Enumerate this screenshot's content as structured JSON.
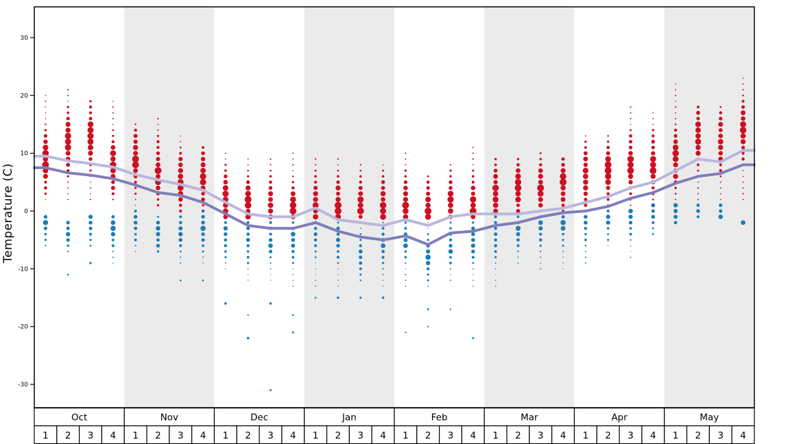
{
  "chart_data": {
    "type": "scatter",
    "title": "",
    "ylabel": "Temperature (C)",
    "ylim": [
      -34,
      35
    ],
    "yticks": [
      -30,
      -20,
      -10,
      0,
      10,
      20,
      30
    ],
    "grid": false,
    "legend": "none",
    "months": [
      {
        "label": "Oct",
        "shaded": false
      },
      {
        "label": "Nov",
        "shaded": true
      },
      {
        "label": "Dec",
        "shaded": false
      },
      {
        "label": "Jan",
        "shaded": true
      },
      {
        "label": "Feb",
        "shaded": false
      },
      {
        "label": "Mar",
        "shaded": true
      },
      {
        "label": "Apr",
        "shaded": false
      },
      {
        "label": "May",
        "shaded": true
      }
    ],
    "week_labels": [
      "1",
      "2",
      "3",
      "4"
    ],
    "colors": {
      "band": "#ebebeb",
      "max_dots": "#cc1122",
      "min_dots": "#1a7db6",
      "avg_max_line": "#b9b7dd",
      "avg_min_line": "#807db9"
    },
    "series": [
      {
        "name": "average_max_temp",
        "values": [
          9.5,
          8.7,
          8.2,
          7.6,
          6.3,
          5.4,
          4.6,
          3.6,
          1.5,
          -0.5,
          -1.0,
          -1.0,
          0.5,
          -1.5,
          -2.0,
          -2.5,
          -1.5,
          -2.5,
          -1.0,
          -0.5,
          -0.5,
          -0.5,
          0.0,
          0.5,
          1.5,
          2.5,
          4.0,
          5.0,
          7.0,
          9.0,
          8.5,
          10.5
        ]
      },
      {
        "name": "average_min_temp",
        "values": [
          7.5,
          6.6,
          6.2,
          5.6,
          4.5,
          3.2,
          2.7,
          1.5,
          -0.5,
          -2.5,
          -3.0,
          -3.0,
          -2.0,
          -3.5,
          -4.5,
          -5.0,
          -4.3,
          -5.8,
          -3.8,
          -3.5,
          -2.5,
          -2.0,
          -1.0,
          -0.3,
          0.0,
          0.8,
          2.2,
          3.2,
          4.8,
          6.0,
          6.5,
          8.0
        ]
      }
    ],
    "max_temp_dots_weekly": [
      {
        "max": 20,
        "min": 2,
        "peak": 9
      },
      {
        "max": 21,
        "min": 2,
        "peak": 12
      },
      {
        "max": 19,
        "min": 2,
        "peak": 13
      },
      {
        "max": 19,
        "min": 2,
        "peak": 8
      },
      {
        "max": 15,
        "min": 1,
        "peak": 9
      },
      {
        "max": 16,
        "min": 1,
        "peak": 7
      },
      {
        "max": 13,
        "min": 0,
        "peak": 5
      },
      {
        "max": 11,
        "min": 0,
        "peak": 6
      },
      {
        "max": 10,
        "min": -1,
        "peak": 2
      },
      {
        "max": 9,
        "min": -1,
        "peak": 1
      },
      {
        "max": 9,
        "min": -1,
        "peak": 1
      },
      {
        "max": 10,
        "min": -1,
        "peak": 0
      },
      {
        "max": 9,
        "min": -1,
        "peak": 1
      },
      {
        "max": 9,
        "min": -1,
        "peak": 1
      },
      {
        "max": 8,
        "min": -1,
        "peak": 1
      },
      {
        "max": 8,
        "min": -1,
        "peak": 1
      },
      {
        "max": 10,
        "min": -1,
        "peak": 1
      },
      {
        "max": 6,
        "min": -1,
        "peak": 0
      },
      {
        "max": 8,
        "min": -1,
        "peak": 1
      },
      {
        "max": 11,
        "min": -1,
        "peak": 1
      },
      {
        "max": 9,
        "min": 0,
        "peak": 3
      },
      {
        "max": 9,
        "min": 0,
        "peak": 4
      },
      {
        "max": 10,
        "min": 0,
        "peak": 4
      },
      {
        "max": 9,
        "min": 0,
        "peak": 5
      },
      {
        "max": 13,
        "min": 0,
        "peak": 6
      },
      {
        "max": 13,
        "min": 1,
        "peak": 7
      },
      {
        "max": 18,
        "min": 1,
        "peak": 8
      },
      {
        "max": 17,
        "min": 1,
        "peak": 8
      },
      {
        "max": 22,
        "min": 2,
        "peak": 9
      },
      {
        "max": 18,
        "min": 2,
        "peak": 13
      },
      {
        "max": 18,
        "min": 2,
        "peak": 12
      },
      {
        "max": 23,
        "min": 2,
        "peak": 14
      }
    ],
    "min_temp_dots_weekly": [
      {
        "max": -1,
        "min": -6,
        "peak": -2,
        "extra": []
      },
      {
        "max": -2,
        "min": -7,
        "peak": -3,
        "extra": [
          -11
        ]
      },
      {
        "max": -1,
        "min": -6,
        "peak": -2,
        "extra": [
          -9
        ]
      },
      {
        "max": -1,
        "min": -9,
        "peak": -3,
        "extra": []
      },
      {
        "max": 0,
        "min": -7,
        "peak": -2,
        "extra": []
      },
      {
        "max": -1,
        "min": -7,
        "peak": -4,
        "extra": []
      },
      {
        "max": -1,
        "min": -9,
        "peak": -4,
        "extra": [
          -12
        ]
      },
      {
        "max": 0,
        "min": -9,
        "peak": -3,
        "extra": [
          -12
        ]
      },
      {
        "max": -1,
        "min": -10,
        "peak": -4,
        "extra": [
          -16
        ]
      },
      {
        "max": -1,
        "min": -12,
        "peak": -5,
        "extra": [
          -18,
          -22
        ]
      },
      {
        "max": -1,
        "min": -12,
        "peak": -5,
        "extra": [
          -16,
          -31
        ]
      },
      {
        "max": -2,
        "min": -13,
        "peak": -5,
        "extra": [
          -18,
          -21
        ]
      },
      {
        "max": -1,
        "min": -13,
        "peak": -4,
        "extra": [
          -15
        ]
      },
      {
        "max": -2,
        "min": -13,
        "peak": -5,
        "extra": [
          -15
        ]
      },
      {
        "max": -2,
        "min": -12,
        "peak": -8,
        "extra": [
          -15
        ]
      },
      {
        "max": -1,
        "min": -13,
        "peak": -6,
        "extra": [
          -15
        ]
      },
      {
        "max": -2,
        "min": -13,
        "peak": -5,
        "extra": [
          -21
        ]
      },
      {
        "max": -1,
        "min": -13,
        "peak": -8,
        "extra": [
          -17,
          -20
        ]
      },
      {
        "max": -1,
        "min": -12,
        "peak": -6,
        "extra": [
          -17
        ]
      },
      {
        "max": -1,
        "min": -13,
        "peak": -5,
        "extra": [
          -22
        ]
      },
      {
        "max": -1,
        "min": -13,
        "peak": -4,
        "extra": []
      },
      {
        "max": 0,
        "min": -9,
        "peak": -3,
        "extra": []
      },
      {
        "max": 0,
        "min": -10,
        "peak": -3,
        "extra": []
      },
      {
        "max": 0,
        "min": -10,
        "peak": -2,
        "extra": []
      },
      {
        "max": 0,
        "min": -9,
        "peak": -2,
        "extra": []
      },
      {
        "max": 0,
        "min": -6,
        "peak": -1,
        "extra": []
      },
      {
        "max": 0,
        "min": -8,
        "peak": -1,
        "extra": []
      },
      {
        "max": 1,
        "min": -4,
        "peak": 0,
        "extra": []
      },
      {
        "max": 1,
        "min": -2,
        "peak": 0,
        "extra": []
      },
      {
        "max": 1,
        "min": -1,
        "peak": 0,
        "extra": []
      },
      {
        "max": 1,
        "min": -1,
        "peak": 0,
        "extra": []
      },
      {
        "max": -2,
        "min": -2,
        "peak": -2,
        "extra": []
      }
    ]
  }
}
